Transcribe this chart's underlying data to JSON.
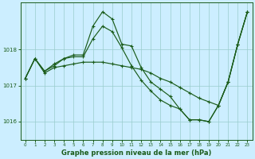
{
  "title": "Graphe pression niveau de la mer (hPa)",
  "background_color": "#cceeff",
  "line_color": "#1a5c1a",
  "grid_color": "#99cccc",
  "xlim": [
    -0.5,
    23.5
  ],
  "ylim": [
    1015.5,
    1019.3
  ],
  "yticks": [
    1016,
    1017,
    1018
  ],
  "xticks": [
    0,
    1,
    2,
    3,
    4,
    5,
    6,
    7,
    8,
    9,
    10,
    11,
    12,
    13,
    14,
    15,
    16,
    17,
    18,
    19,
    20,
    21,
    22,
    23
  ],
  "series1": [
    1017.2,
    1017.75,
    1017.4,
    1017.6,
    1017.75,
    1017.85,
    1017.85,
    1018.65,
    1019.05,
    1018.85,
    1018.15,
    1018.1,
    1017.5,
    1017.1,
    1016.9,
    1016.7,
    1016.35,
    1016.05,
    1016.05,
    1016.0,
    1016.45,
    1017.1,
    1018.15,
    1019.05
  ],
  "series2": [
    1017.2,
    1017.75,
    1017.4,
    1017.55,
    1017.75,
    1017.8,
    1017.8,
    1018.3,
    1018.65,
    1018.5,
    1018.05,
    1017.55,
    1017.15,
    1016.85,
    1016.6,
    1016.45,
    1016.35,
    1016.05,
    1016.05,
    1016.0,
    1016.45,
    1017.1,
    1018.15,
    1019.05
  ],
  "series3": [
    1017.2,
    1017.75,
    1017.35,
    1017.5,
    1017.55,
    1017.6,
    1017.65,
    1017.65,
    1017.65,
    1017.6,
    1017.55,
    1017.5,
    1017.45,
    1017.35,
    1017.2,
    1017.1,
    1016.95,
    1016.8,
    1016.65,
    1016.55,
    1016.45,
    1017.1,
    1018.15,
    1019.05
  ]
}
